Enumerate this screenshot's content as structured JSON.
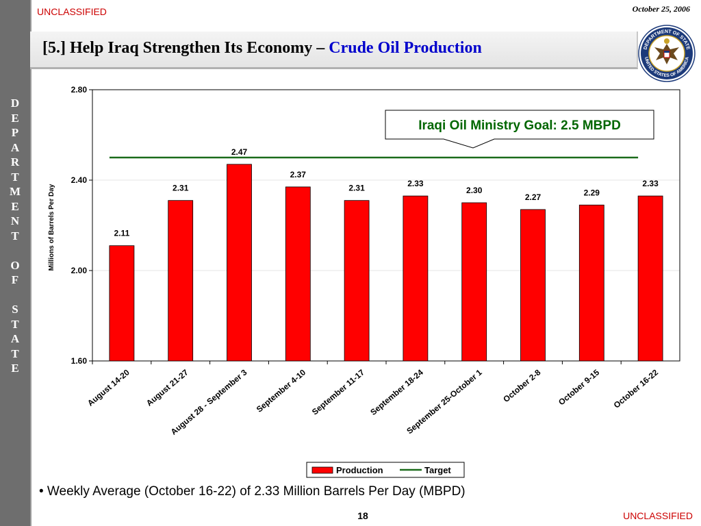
{
  "header": {
    "classification": "UNCLASSIFIED",
    "date": "October 25, 2006",
    "title_main": "[5.] Help Iraq Strengthen Its Economy – ",
    "title_accent": "Crude Oil Production"
  },
  "sidebar": {
    "text": "D\nE\nP\nA\nR\nT\nM\nE\nN\nT\n\nO\nF\n\nS\nT\nA\nT\nE"
  },
  "seal": {
    "top_text": "DEPARTMENT OF STATE",
    "bottom_text": "UNITED STATES OF AMERICA"
  },
  "colors": {
    "production": "#ff0000",
    "target": "#1a6b1a",
    "title_accent": "#0000cc",
    "classification": "#cc0000"
  },
  "chart_data": {
    "type": "bar",
    "ylabel": "Millions of Barrels Per Day",
    "ylim": [
      1.6,
      2.8
    ],
    "yticks": [
      "1.60",
      "2.00",
      "2.40",
      "2.80"
    ],
    "categories": [
      "August 14-20",
      "August 21-27",
      "August 28 - September 3",
      "September 4-10",
      "September 11-17",
      "September 18-24",
      "September 25-October 1",
      "October 2-8",
      "October 9-15",
      "October 16-22"
    ],
    "series": [
      {
        "name": "Production",
        "values": [
          2.11,
          2.31,
          2.47,
          2.37,
          2.31,
          2.33,
          2.3,
          2.27,
          2.29,
          2.33
        ],
        "labels": [
          "2.11",
          "2.31",
          "2.47",
          "2.37",
          "2.31",
          "2.33",
          "2.30",
          "2.27",
          "2.29",
          "2.33"
        ]
      },
      {
        "name": "Target",
        "type": "line",
        "value": 2.5
      }
    ],
    "annotation": "Iraqi Oil Ministry Goal:  2.5 MBPD",
    "legend_position": "bottom"
  },
  "footer": {
    "bullet": "• Weekly Average (October 16-22) of 2.33 Million Barrels Per Day (MBPD)",
    "page_number": "18",
    "classification": "UNCLASSIFIED"
  }
}
